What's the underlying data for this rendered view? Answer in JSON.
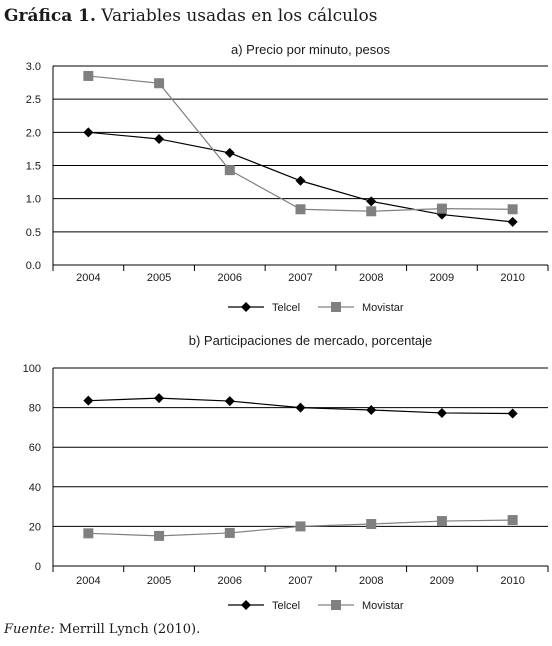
{
  "figure": {
    "title_bold": "Gráfica 1.",
    "title_rest": " Variables usadas en los cálculos",
    "source_label": "Fuente:",
    "source_text": " Merrill Lynch (2010)."
  },
  "chart_data": [
    {
      "type": "line",
      "title": "a) Precio por minuto, pesos",
      "xlabel": "",
      "ylabel": "",
      "categories": [
        "2004",
        "2005",
        "2006",
        "2007",
        "2008",
        "2009",
        "2010"
      ],
      "ylim": [
        0,
        3.0
      ],
      "yticks": [
        0.0,
        0.5,
        1.0,
        1.5,
        2.0,
        2.5,
        3.0
      ],
      "ytick_labels": [
        "0.0",
        "0.5",
        "1.0",
        "1.5",
        "2.0",
        "2.5",
        "3.0"
      ],
      "grid": true,
      "legend_position": "bottom",
      "series": [
        {
          "name": "Telcel",
          "marker": "diamond",
          "color": "#000000",
          "values": [
            2.0,
            1.9,
            1.69,
            1.27,
            0.96,
            0.76,
            0.65
          ]
        },
        {
          "name": "Movistar",
          "marker": "square",
          "color": "#808080",
          "values": [
            2.85,
            2.74,
            1.43,
            0.84,
            0.81,
            0.85,
            0.84
          ]
        }
      ]
    },
    {
      "type": "line",
      "title": "b) Participaciones de mercado, porcentaje",
      "xlabel": "",
      "ylabel": "",
      "categories": [
        "2004",
        "2005",
        "2006",
        "2007",
        "2008",
        "2009",
        "2010"
      ],
      "ylim": [
        0,
        100
      ],
      "yticks": [
        0,
        20,
        40,
        60,
        80,
        100
      ],
      "ytick_labels": [
        "0",
        "20",
        "40",
        "60",
        "80",
        "100"
      ],
      "grid": true,
      "legend_position": "bottom",
      "series": [
        {
          "name": "Telcel",
          "marker": "diamond",
          "color": "#000000",
          "values": [
            83.5,
            84.8,
            83.3,
            80.0,
            78.8,
            77.3,
            77.0
          ]
        },
        {
          "name": "Movistar",
          "marker": "square",
          "color": "#808080",
          "values": [
            16.5,
            15.2,
            16.7,
            20.0,
            21.2,
            22.7,
            23.2
          ]
        }
      ]
    }
  ]
}
